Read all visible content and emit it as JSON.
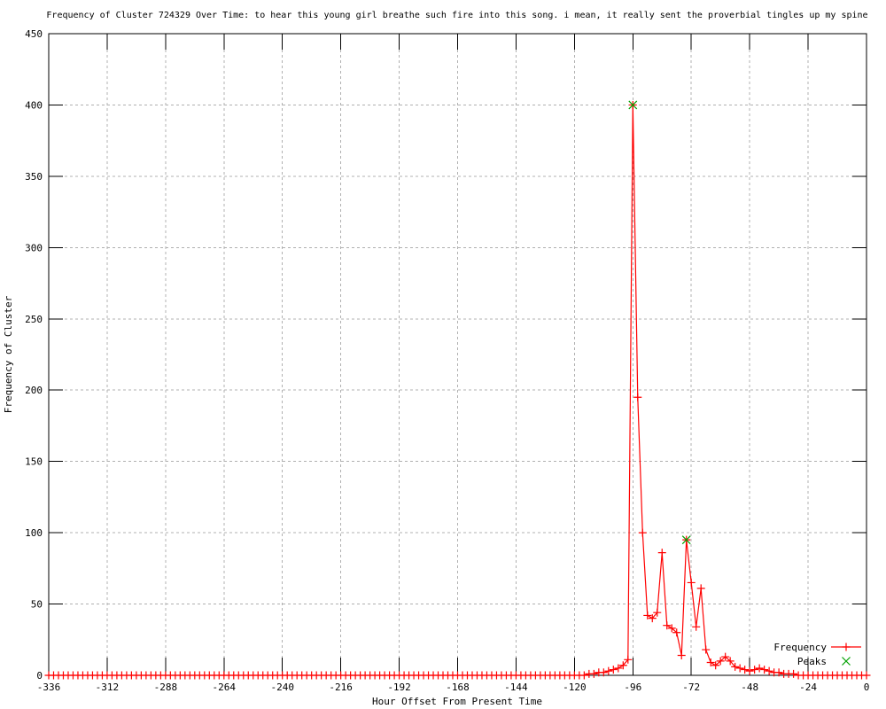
{
  "chart_data": {
    "type": "line",
    "title": "Frequency of Cluster 724329 Over Time: to hear this young girl breathe such fire into this song. i mean, it really sent the proverbial tingles up my spine",
    "xlabel": "Hour Offset From Present Time",
    "ylabel": "Frequency of Cluster",
    "xlim": [
      -336,
      0
    ],
    "ylim": [
      0,
      450
    ],
    "xticks": [
      -336,
      -312,
      -288,
      -264,
      -240,
      -216,
      -192,
      -168,
      -144,
      -120,
      -96,
      -72,
      -48,
      -24,
      0
    ],
    "yticks": [
      0,
      50,
      100,
      150,
      200,
      250,
      300,
      350,
      400,
      450
    ],
    "grid": true,
    "legend_position": "bottom-right",
    "series": [
      {
        "name": "Frequency",
        "color": "#ff0000",
        "marker": "plus",
        "style": "line-points",
        "x_start": -336,
        "x_step": 2,
        "values": [
          0,
          0,
          0,
          0,
          0,
          0,
          0,
          0,
          0,
          0,
          0,
          0,
          0,
          0,
          0,
          0,
          0,
          0,
          0,
          0,
          0,
          0,
          0,
          0,
          0,
          0,
          0,
          0,
          0,
          0,
          0,
          0,
          0,
          0,
          0,
          0,
          0,
          0,
          0,
          0,
          0,
          0,
          0,
          0,
          0,
          0,
          0,
          0,
          0,
          0,
          0,
          0,
          0,
          0,
          0,
          0,
          0,
          0,
          0,
          0,
          0,
          0,
          0,
          0,
          0,
          0,
          0,
          0,
          0,
          0,
          0,
          0,
          0,
          0,
          0,
          0,
          0,
          0,
          0,
          0,
          0,
          0,
          0,
          0,
          0,
          0,
          0,
          0,
          0,
          0,
          0,
          0,
          0,
          0,
          0,
          0,
          0,
          0,
          0,
          0,
          0,
          0,
          0,
          0,
          0,
          0,
          0,
          0,
          0,
          0,
          0,
          1,
          1,
          2,
          2,
          3,
          4,
          5,
          7,
          11,
          400,
          195,
          100,
          42,
          40,
          44,
          86,
          35,
          33,
          30,
          14,
          95,
          65,
          34,
          61,
          18,
          9,
          7,
          10,
          13,
          10,
          6,
          5,
          4,
          3,
          4,
          5,
          4,
          3,
          2,
          2,
          1,
          1,
          1,
          0,
          0,
          0,
          0,
          0,
          0,
          0,
          0,
          0,
          0,
          0,
          0,
          0,
          0,
          0
        ]
      },
      {
        "name": "Peaks",
        "color": "#00a000",
        "marker": "cross",
        "style": "points",
        "points": [
          [
            -96,
            400
          ],
          [
            -74,
            95
          ]
        ]
      }
    ]
  },
  "colors": {
    "line": "#ff0000",
    "peaks": "#00a000",
    "grid": "#b0b0b0",
    "axis": "#000000",
    "background": "#ffffff"
  }
}
